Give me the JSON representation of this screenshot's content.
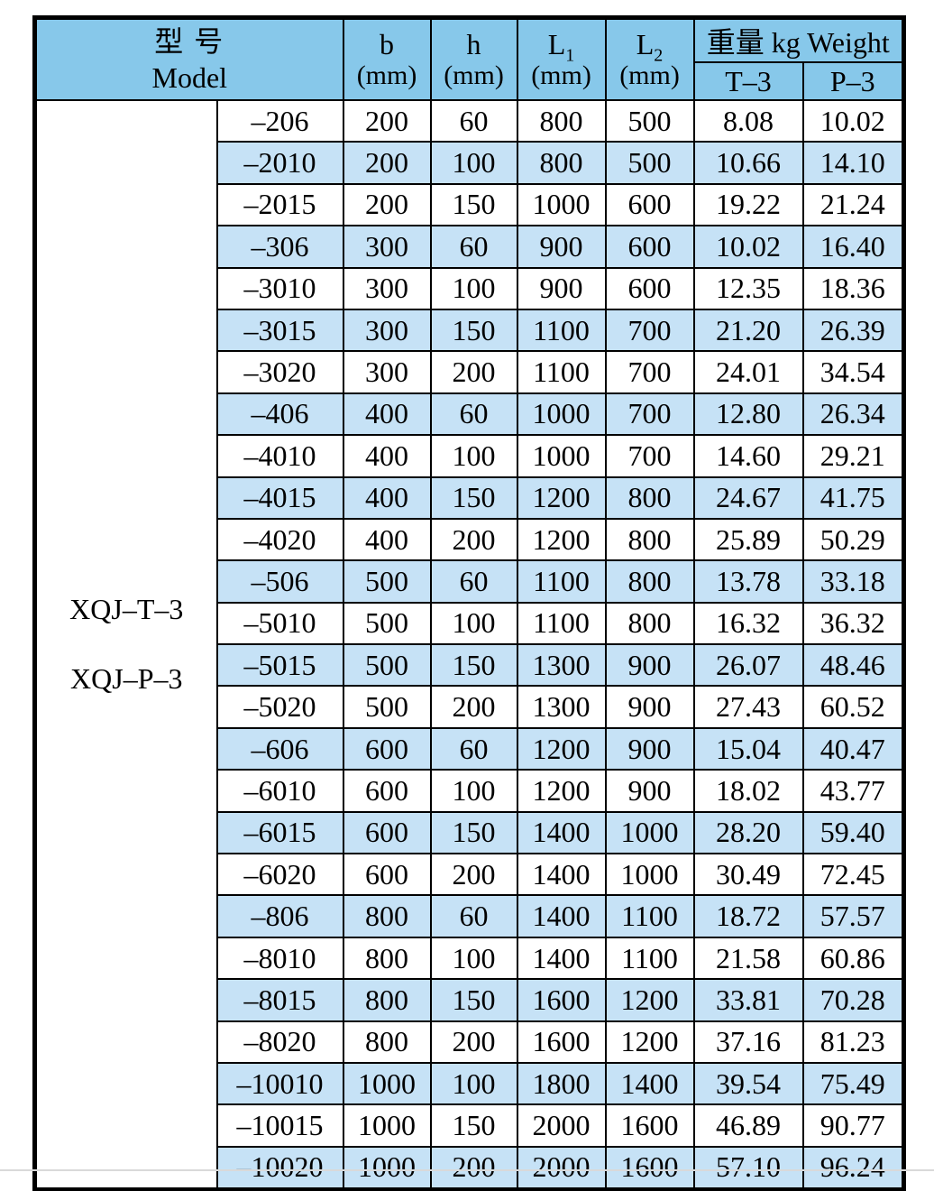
{
  "table": {
    "header": {
      "model_zh": "型 号",
      "model_en": "Model",
      "b_label": "b",
      "h_label": "h",
      "l1_label": "L",
      "l1_sub": "1",
      "l2_label": "L",
      "l2_sub": "2",
      "unit_mm": "(mm)",
      "weight_label": "重量 kg Weight",
      "t3_label": "T–3",
      "p3_label": "P–3"
    },
    "model_prefixes": [
      "XQJ–T–3",
      "XQJ–P–3"
    ],
    "rows": [
      {
        "model": "–206",
        "b": "200",
        "h": "60",
        "l1": "800",
        "l2": "500",
        "t3": "8.08",
        "p3": "10.02"
      },
      {
        "model": "–2010",
        "b": "200",
        "h": "100",
        "l1": "800",
        "l2": "500",
        "t3": "10.66",
        "p3": "14.10"
      },
      {
        "model": "–2015",
        "b": "200",
        "h": "150",
        "l1": "1000",
        "l2": "600",
        "t3": "19.22",
        "p3": "21.24"
      },
      {
        "model": "–306",
        "b": "300",
        "h": "60",
        "l1": "900",
        "l2": "600",
        "t3": "10.02",
        "p3": "16.40"
      },
      {
        "model": "–3010",
        "b": "300",
        "h": "100",
        "l1": "900",
        "l2": "600",
        "t3": "12.35",
        "p3": "18.36"
      },
      {
        "model": "–3015",
        "b": "300",
        "h": "150",
        "l1": "1100",
        "l2": "700",
        "t3": "21.20",
        "p3": "26.39"
      },
      {
        "model": "–3020",
        "b": "300",
        "h": "200",
        "l1": "1100",
        "l2": "700",
        "t3": "24.01",
        "p3": "34.54"
      },
      {
        "model": "–406",
        "b": "400",
        "h": "60",
        "l1": "1000",
        "l2": "700",
        "t3": "12.80",
        "p3": "26.34"
      },
      {
        "model": "–4010",
        "b": "400",
        "h": "100",
        "l1": "1000",
        "l2": "700",
        "t3": "14.60",
        "p3": "29.21"
      },
      {
        "model": "–4015",
        "b": "400",
        "h": "150",
        "l1": "1200",
        "l2": "800",
        "t3": "24.67",
        "p3": "41.75"
      },
      {
        "model": "–4020",
        "b": "400",
        "h": "200",
        "l1": "1200",
        "l2": "800",
        "t3": "25.89",
        "p3": "50.29"
      },
      {
        "model": "–506",
        "b": "500",
        "h": "60",
        "l1": "1100",
        "l2": "800",
        "t3": "13.78",
        "p3": "33.18"
      },
      {
        "model": "–5010",
        "b": "500",
        "h": "100",
        "l1": "1100",
        "l2": "800",
        "t3": "16.32",
        "p3": "36.32"
      },
      {
        "model": "–5015",
        "b": "500",
        "h": "150",
        "l1": "1300",
        "l2": "900",
        "t3": "26.07",
        "p3": "48.46"
      },
      {
        "model": "–5020",
        "b": "500",
        "h": "200",
        "l1": "1300",
        "l2": "900",
        "t3": "27.43",
        "p3": "60.52"
      },
      {
        "model": "–606",
        "b": "600",
        "h": "60",
        "l1": "1200",
        "l2": "900",
        "t3": "15.04",
        "p3": "40.47"
      },
      {
        "model": "–6010",
        "b": "600",
        "h": "100",
        "l1": "1200",
        "l2": "900",
        "t3": "18.02",
        "p3": "43.77"
      },
      {
        "model": "–6015",
        "b": "600",
        "h": "150",
        "l1": "1400",
        "l2": "1000",
        "t3": "28.20",
        "p3": "59.40"
      },
      {
        "model": "–6020",
        "b": "600",
        "h": "200",
        "l1": "1400",
        "l2": "1000",
        "t3": "30.49",
        "p3": "72.45"
      },
      {
        "model": "–806",
        "b": "800",
        "h": "60",
        "l1": "1400",
        "l2": "1100",
        "t3": "18.72",
        "p3": "57.57"
      },
      {
        "model": "–8010",
        "b": "800",
        "h": "100",
        "l1": "1400",
        "l2": "1100",
        "t3": "21.58",
        "p3": "60.86"
      },
      {
        "model": "–8015",
        "b": "800",
        "h": "150",
        "l1": "1600",
        "l2": "1200",
        "t3": "33.81",
        "p3": "70.28"
      },
      {
        "model": "–8020",
        "b": "800",
        "h": "200",
        "l1": "1600",
        "l2": "1200",
        "t3": "37.16",
        "p3": "81.23"
      },
      {
        "model": "–10010",
        "b": "1000",
        "h": "100",
        "l1": "1800",
        "l2": "1400",
        "t3": "39.54",
        "p3": "75.49"
      },
      {
        "model": "–10015",
        "b": "1000",
        "h": "150",
        "l1": "2000",
        "l2": "1600",
        "t3": "46.89",
        "p3": "90.77"
      },
      {
        "model": "–10020",
        "b": "1000",
        "h": "200",
        "l1": "2000",
        "l2": "1600",
        "t3": "57.10",
        "p3": "96.24"
      }
    ]
  },
  "colors": {
    "header_bg": "#87c8ea",
    "stripe_bg": "#c6e2f6",
    "border": "#000000",
    "page_divider": "#d9d9d9"
  }
}
